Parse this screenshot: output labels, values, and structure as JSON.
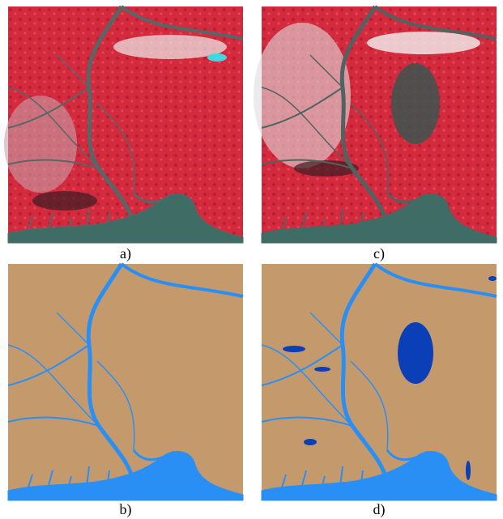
{
  "panels": [
    {
      "label": "a)"
    },
    {
      "label": "c)"
    },
    {
      "label": "b)"
    },
    {
      "label": "d)"
    }
  ]
}
